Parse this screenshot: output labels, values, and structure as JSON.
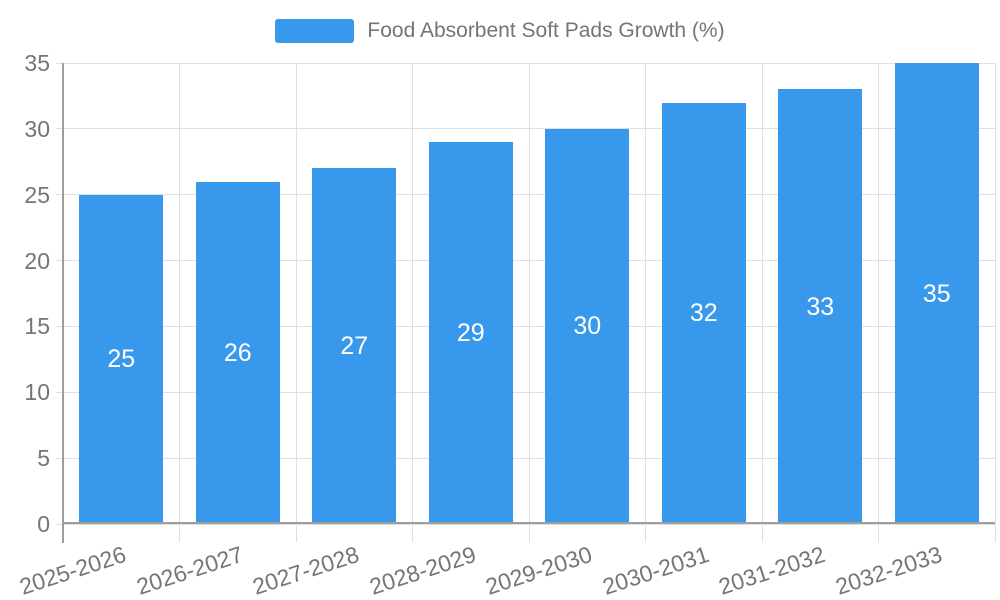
{
  "legend": {
    "label": "Food Absorbent Soft Pads Growth (%)"
  },
  "chart_data": {
    "type": "bar",
    "title": "Food Absorbent Soft Pads Growth (%)",
    "categories": [
      "2025-2026",
      "2026-2027",
      "2027-2028",
      "2028-2029",
      "2029-2030",
      "2030-2031",
      "2031-2032",
      "2032-2033"
    ],
    "values": [
      25,
      26,
      27,
      29,
      30,
      32,
      33,
      35
    ],
    "value_labels": [
      "25",
      "26",
      "27",
      "29",
      "30",
      "32",
      "33",
      "35"
    ],
    "xlabel": "",
    "ylabel": "",
    "ylim": [
      0,
      35
    ],
    "yticks": [
      0,
      5,
      10,
      15,
      20,
      25,
      30,
      35
    ],
    "grid": true,
    "legend_position": "top-center",
    "colors": {
      "bar": "#3899EC",
      "value_label": "#FFFFFF",
      "gridline": "#E0E0E0",
      "tick": "#CCCCCC",
      "axis": "#9E9E9E",
      "text": "#757575",
      "background": "#FFFFFF"
    }
  }
}
